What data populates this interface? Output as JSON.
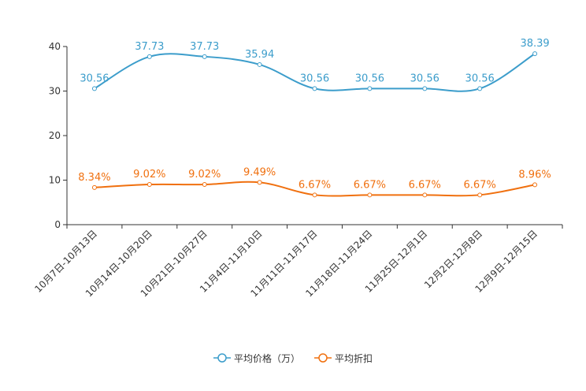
{
  "chart_data": {
    "type": "line",
    "categories": [
      "10月7日-10月13日",
      "10月14日-10月20日",
      "10月21日-10月27日",
      "11月4日-11月10日",
      "11月11日-11月17日",
      "11月18日-11月24日",
      "11月25日-12月1日",
      "12月2日-12月8日",
      "12月9日-12月15日"
    ],
    "series": [
      {
        "name": "平均价格（万）",
        "color": "#3c9dcb",
        "values": [
          30.56,
          37.73,
          37.73,
          35.94,
          30.56,
          30.56,
          30.56,
          30.56,
          38.39
        ],
        "labels": [
          "30.56",
          "37.73",
          "37.73",
          "35.94",
          "30.56",
          "30.56",
          "30.56",
          "30.56",
          "38.39"
        ]
      },
      {
        "name": "平均折扣",
        "color": "#f0700f",
        "values": [
          8.34,
          9.02,
          9.02,
          9.49,
          6.67,
          6.67,
          6.67,
          6.67,
          8.96
        ],
        "labels": [
          "8.34%",
          "9.02%",
          "9.02%",
          "9.49%",
          "6.67%",
          "6.67%",
          "6.67%",
          "6.67%",
          "8.96%"
        ]
      }
    ],
    "ylim": [
      0,
      40
    ],
    "yticks": [
      "0",
      "10",
      "20",
      "30",
      "40"
    ],
    "ytick_values": [
      0,
      10,
      20,
      30,
      40
    ],
    "legend_position": "bottom",
    "grid": false
  }
}
